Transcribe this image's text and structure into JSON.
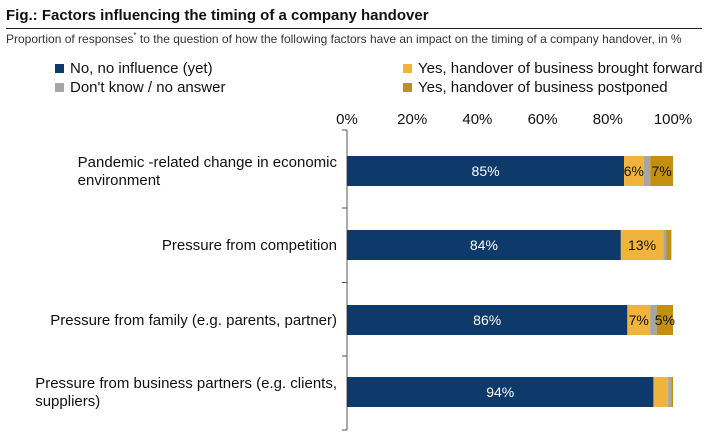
{
  "figure": {
    "title": "Fig.: Factors influencing the timing of a company handover",
    "subtitle": "Proportion of responses",
    "subtitle_mark": "*",
    "subtitle_rest": " to the question of how the following factors have an impact on the timing of a company handover, in %"
  },
  "chart_data": {
    "type": "bar",
    "orientation": "horizontal",
    "stacked": true,
    "xlim": [
      0,
      100
    ],
    "xticks": [
      "0%",
      "20%",
      "40%",
      "60%",
      "80%",
      "100%"
    ],
    "categories": [
      [
        "Pandemic -related change in economic",
        "environment"
      ],
      [
        "Pressure from competition"
      ],
      [
        "Pressure from family (e.g.  parents, partner)"
      ],
      [
        "Pressure from business partners (e.g. clients,",
        "suppliers)"
      ]
    ],
    "series": [
      {
        "name": "No, no influence (yet)",
        "color": "#0e3a6b",
        "values": [
          85,
          84,
          86,
          94
        ],
        "labels": [
          "85%",
          "84%",
          "86%",
          "94%"
        ]
      },
      {
        "name": "Yes, handover of business brought forward",
        "color": "#f0b43c",
        "values": [
          6,
          13,
          7,
          4.5
        ],
        "labels": [
          "6%",
          "13%",
          "7%",
          ""
        ]
      },
      {
        "name": "Don't know / no answer",
        "color": "#a6a6a6",
        "values": [
          2,
          1,
          2,
          1
        ],
        "labels": [
          "",
          "",
          "",
          ""
        ]
      },
      {
        "name": "Yes, handover of business postponed",
        "color": "#c28f10",
        "values": [
          7,
          1.5,
          5,
          0.5
        ],
        "labels": [
          "7%",
          "",
          "5%",
          ""
        ]
      }
    ],
    "legend_position": "top",
    "grid": false
  }
}
